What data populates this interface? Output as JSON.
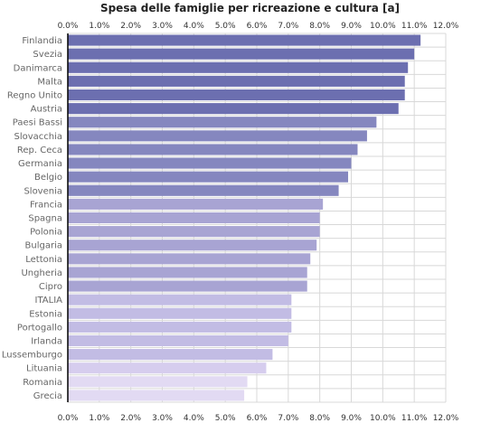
{
  "chart_data": {
    "type": "bar",
    "orientation": "horizontal",
    "title": "Spesa delle famiglie per ricreazione e cultura [a]",
    "xlabel": "",
    "ylabel": "",
    "xlim": [
      0,
      12
    ],
    "x_ticks": [
      "0.0%",
      "1.0%",
      "2.0%",
      "3.0%",
      "4.0%",
      "5.0%",
      "6.0%",
      "7.0%",
      "8.0%",
      "9.0%",
      "10.0%",
      "11.0%",
      "12.0%"
    ],
    "tick_axes": [
      "top",
      "bottom"
    ],
    "grid": true,
    "categories": [
      "Finlandia",
      "Svezia",
      "Danimarca",
      "Malta",
      "Regno Unito",
      "Austria",
      "Paesi Bassi",
      "Slovacchia",
      "Rep. Ceca",
      "Germania",
      "Belgio",
      "Slovenia",
      "Francia",
      "Spagna",
      "Polonia",
      "Bulgaria",
      "Lettonia",
      "Ungheria",
      "Cipro",
      "ITALIA",
      "Estonia",
      "Portogallo",
      "Irlanda",
      "Lussemburgo",
      "Lituania",
      "Romania",
      "Grecia"
    ],
    "values": [
      11.2,
      11.0,
      10.8,
      10.7,
      10.7,
      10.5,
      9.8,
      9.5,
      9.2,
      9.0,
      8.9,
      8.6,
      8.1,
      8.0,
      8.0,
      7.9,
      7.7,
      7.6,
      7.6,
      7.1,
      7.1,
      7.1,
      7.0,
      6.5,
      6.3,
      5.7,
      5.6
    ],
    "colors": [
      "#6c6fb0",
      "#6c6fb0",
      "#6c6fb0",
      "#6c6fb0",
      "#6c6fb0",
      "#6c6fb0",
      "#8587bf",
      "#8587bf",
      "#8587bf",
      "#8587bf",
      "#8587bf",
      "#8587bf",
      "#a8a4d3",
      "#a8a4d3",
      "#a8a4d3",
      "#a8a4d3",
      "#a8a4d3",
      "#a8a4d3",
      "#a8a4d3",
      "#c2bce4",
      "#c2bce4",
      "#c2bce4",
      "#c2bce4",
      "#c2bce4",
      "#d6cdee",
      "#e2daf3",
      "#e2daf3"
    ],
    "gridline_color": "#d8d8d8",
    "axis_color": "#000000"
  }
}
